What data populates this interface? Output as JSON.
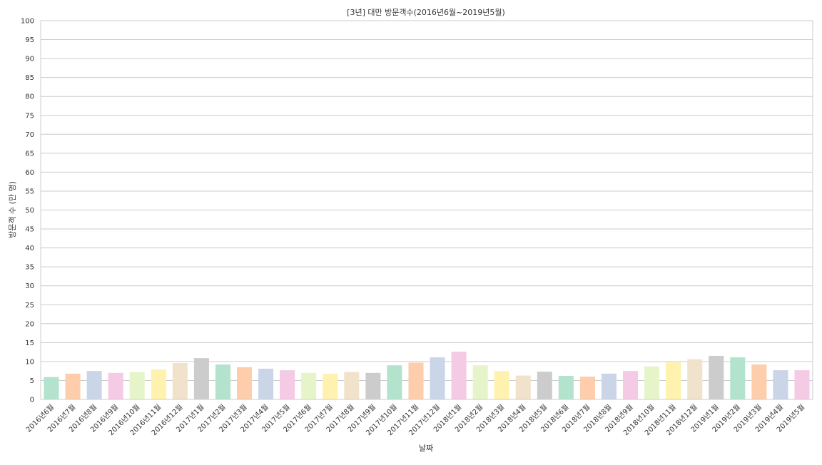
{
  "chart_data": {
    "type": "bar",
    "title": "[3년] 대만 방문객수(2016년6월~2019년5월)",
    "xlabel": "날짜",
    "ylabel": "방문객 수 (만 명)",
    "ylim": [
      0,
      100
    ],
    "yticks": [
      0,
      5,
      10,
      15,
      20,
      25,
      30,
      35,
      40,
      45,
      50,
      55,
      60,
      65,
      70,
      75,
      80,
      85,
      90,
      95,
      100
    ],
    "grid": true,
    "categories": [
      "2016년6월",
      "2016년7월",
      "2016년8월",
      "2016년9월",
      "2016년10월",
      "2016년11월",
      "2016년12월",
      "2017년1월",
      "2017년2월",
      "2017년3월",
      "2017년4월",
      "2017년5월",
      "2017년6월",
      "2017년7월",
      "2017년8월",
      "2017년9월",
      "2017년10월",
      "2017년11월",
      "2017년12월",
      "2018년1월",
      "2018년2월",
      "2018년3월",
      "2018년4월",
      "2018년5월",
      "2018년6월",
      "2018년7월",
      "2018년8월",
      "2018년9월",
      "2018년10월",
      "2018년11월",
      "2018년12월",
      "2019년1월",
      "2019년2월",
      "2019년3월",
      "2019년4월",
      "2019년5월"
    ],
    "values": [
      5.9,
      6.8,
      7.5,
      7.0,
      7.2,
      7.9,
      9.6,
      10.9,
      9.2,
      8.5,
      8.1,
      7.7,
      7.0,
      6.8,
      7.2,
      7.0,
      9.0,
      9.7,
      11.1,
      12.6,
      9.0,
      7.5,
      6.3,
      7.3,
      6.2,
      6.0,
      6.8,
      7.5,
      8.7,
      9.8,
      10.6,
      11.5,
      11.1,
      9.2,
      7.7,
      7.7
    ],
    "colors": [
      "#b3e2cd",
      "#fdcdac",
      "#cbd5e8",
      "#f4cae4",
      "#e6f5c9",
      "#fff2ae",
      "#f1e2cc",
      "#cccccc"
    ]
  }
}
